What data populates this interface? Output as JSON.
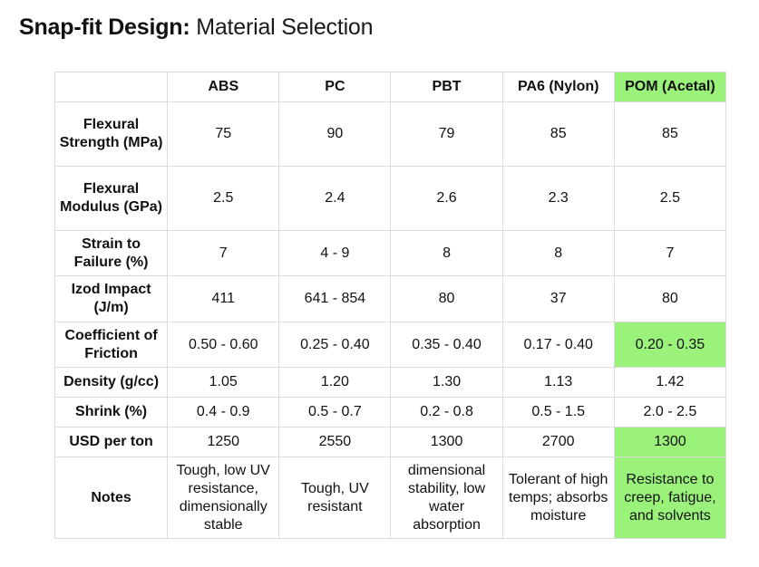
{
  "title": {
    "bold": "Snap-fit Design:",
    "light": "Material Selection"
  },
  "columns": [
    "ABS",
    "PC",
    "PBT",
    "PA6 (Nylon)",
    "POM (Acetal)"
  ],
  "rows": [
    {
      "label": "Flexural Strength (MPa)",
      "values": [
        "75",
        "90",
        "79",
        "85",
        "85"
      ]
    },
    {
      "label": "Flexural Modulus (GPa)",
      "values": [
        "2.5",
        "2.4",
        "2.6",
        "2.3",
        "2.5"
      ]
    },
    {
      "label": "Strain to Failure (%)",
      "values": [
        "7",
        "4 - 9",
        "8",
        "8",
        "7"
      ]
    },
    {
      "label": "Izod Impact (J/m)",
      "values": [
        "411",
        "641 - 854",
        "80",
        "37",
        "80"
      ]
    },
    {
      "label": "Coefficient of Friction",
      "values": [
        "0.50 - 0.60",
        "0.25 - 0.40",
        "0.35 - 0.40",
        "0.17 - 0.40",
        "0.20 - 0.35"
      ]
    },
    {
      "label": "Density (g/cc)",
      "values": [
        "1.05",
        "1.20",
        "1.30",
        "1.13",
        "1.42"
      ]
    },
    {
      "label": "Shrink (%)",
      "values": [
        "0.4 - 0.9",
        "0.5 - 0.7",
        "0.2 - 0.8",
        "0.5 - 1.5",
        "2.0 - 2.5"
      ]
    },
    {
      "label": "USD per ton",
      "values": [
        "1250",
        "2550",
        "1300",
        "2700",
        "1300"
      ]
    },
    {
      "label": "Notes",
      "values": [
        "Tough, low UV resistance, dimensionally stable",
        "Tough, UV resistant",
        "dimensional stability, low water absorption",
        "Tolerant of high temps; absorbs moisture",
        "Resistance to creep, fatigue, and solvents"
      ]
    }
  ],
  "colors": {
    "highlight": "#9bf27a",
    "border": "#dcdcdc"
  }
}
